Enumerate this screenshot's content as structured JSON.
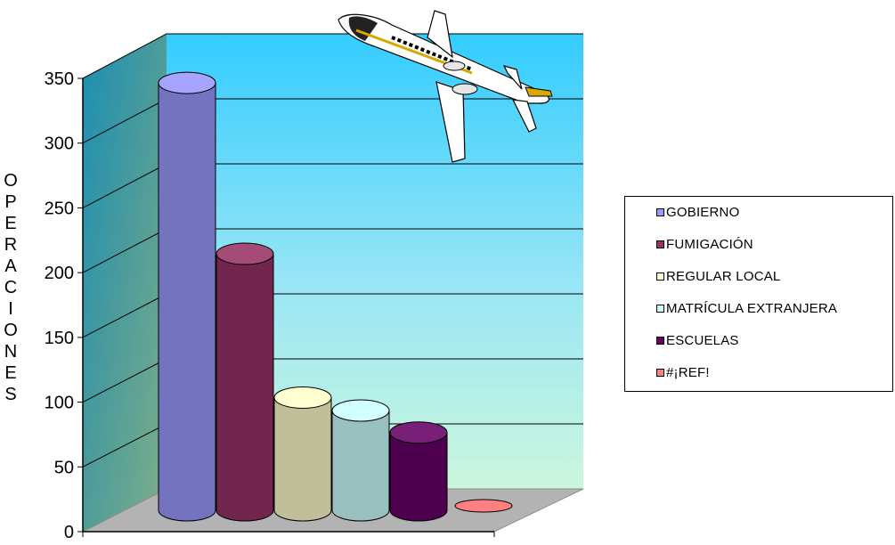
{
  "chart_data": {
    "type": "bar",
    "style": "3d-cylinder",
    "ylabel": "OPERACIONES",
    "ylim": [
      0,
      350
    ],
    "yticks": [
      0,
      50,
      100,
      150,
      200,
      250,
      300,
      350
    ],
    "grid": true,
    "legend_placement": "right",
    "series": [
      {
        "name": "GOBIERNO",
        "value": 330,
        "color": "#9999ff"
      },
      {
        "name": "FUMIGACIÓN",
        "value": 198,
        "color": "#993366"
      },
      {
        "name": "REGULAR LOCAL",
        "value": 87,
        "color": "#ffffcc"
      },
      {
        "name": "MATRÍCULA EXTRANJERA",
        "value": 77,
        "color": "#ccffff"
      },
      {
        "name": "ESCUELAS",
        "value": 60,
        "color": "#660066"
      },
      {
        "name": "#¡REF!",
        "value": 0,
        "color": "#ff8080"
      }
    ]
  },
  "decoration": {
    "airplane_icon": "airplane-icon"
  }
}
